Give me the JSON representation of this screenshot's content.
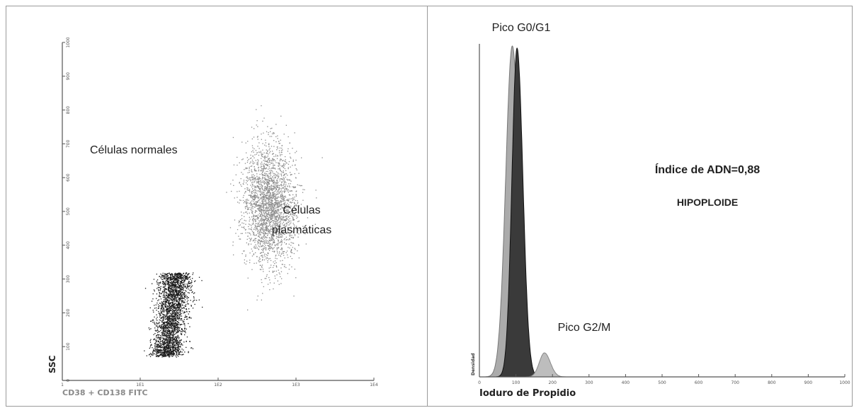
{
  "chart_data": [
    {
      "type": "scatter",
      "xlabel": "CD38 + CD138 FITC",
      "ylabel": "SSC",
      "x_scale": "log",
      "xlim": [
        1,
        10000
      ],
      "ylim": [
        0,
        1000
      ],
      "x_ticks": [
        "1",
        "1E1",
        "1E2",
        "1E3",
        "1E4"
      ],
      "y_ticks": [
        "0",
        "100",
        "200",
        "300",
        "400",
        "500",
        "600",
        "700",
        "800",
        "900",
        "1000"
      ],
      "populations": [
        {
          "label": "Células normales",
          "x_center": 25,
          "y_range": [
            70,
            320
          ],
          "color": "#1a1a1a"
        },
        {
          "label_lines": [
            "Células",
            "plasmáticas"
          ],
          "x_center": 450,
          "y_range": [
            280,
            760
          ],
          "color": "#8c8c8c"
        }
      ]
    },
    {
      "type": "area",
      "xlabel": "Ioduro de Propidio",
      "ylabel": "Densidad",
      "xlim": [
        0,
        1000
      ],
      "x_ticks": [
        "0",
        "100",
        "200",
        "300",
        "400",
        "500",
        "600",
        "700",
        "800",
        "900",
        "1000"
      ],
      "series": [
        {
          "peak_x": 90,
          "color": "#ababab"
        },
        {
          "peak_x": 103,
          "color": "#3a3a3a"
        },
        {
          "peak_x": 178,
          "color": "#bdbdbd"
        }
      ],
      "annotations": [
        "Pico G0/G1",
        "Pico G2/M",
        "Índice de ADN=0,88",
        "HIPOPLOIDE"
      ]
    }
  ]
}
